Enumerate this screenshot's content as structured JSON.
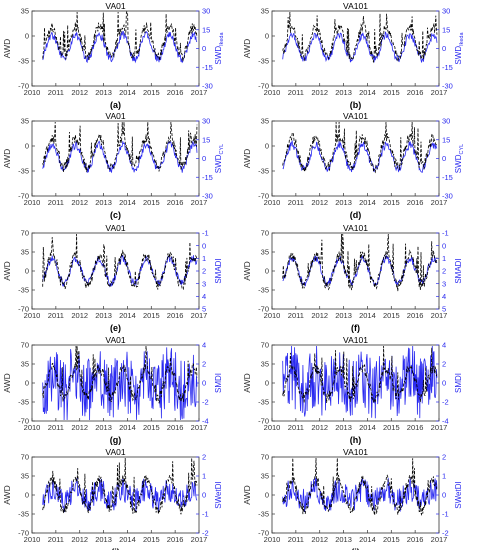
{
  "figure": {
    "x_ticks": [
      "2010",
      "2011",
      "2012",
      "2013",
      "2014",
      "2015",
      "2016",
      "2017"
    ],
    "left_axis_label": "AWD",
    "left_ticks": [
      70,
      35,
      0,
      -35,
      -70
    ],
    "colors": {
      "awd": "#000000",
      "index": "#2a2af0",
      "axis": "#333333"
    }
  },
  "chart_data": [
    {
      "type": "line",
      "title": "VA01",
      "panel_label": "(a)",
      "ylabel": "AWD",
      "ylim": [
        -70,
        35
      ],
      "right_label": "SWD",
      "right_sub": "Ikeda",
      "right_ticks": [
        "30",
        "15",
        "0",
        "-15",
        "-30"
      ],
      "right_lim": [
        30,
        -30
      ],
      "right_inverted": false
    },
    {
      "type": "line",
      "title": "VA101",
      "panel_label": "(b)",
      "ylabel": "AWD",
      "ylim": [
        -70,
        35
      ],
      "right_label": "SWD",
      "right_sub": "Ikeda",
      "right_ticks": [
        "30",
        "15",
        "0",
        "-15",
        "-30"
      ],
      "right_lim": [
        30,
        -30
      ],
      "right_inverted": false
    },
    {
      "type": "line",
      "title": "VA01",
      "panel_label": "(c)",
      "ylabel": "AWD",
      "ylim": [
        -70,
        35
      ],
      "right_label": "SWD",
      "right_sub": "CYL",
      "right_ticks": [
        "30",
        "15",
        "0",
        "-15",
        "-30"
      ],
      "right_lim": [
        30,
        -30
      ],
      "right_inverted": false
    },
    {
      "type": "line",
      "title": "VA101",
      "panel_label": "(d)",
      "ylabel": "AWD",
      "ylim": [
        -70,
        35
      ],
      "right_label": "SWD",
      "right_sub": "CYL",
      "right_ticks": [
        "30",
        "15",
        "0",
        "-15",
        "-30"
      ],
      "right_lim": [
        30,
        -30
      ],
      "right_inverted": false
    },
    {
      "type": "line",
      "title": "VA01",
      "panel_label": "(e)",
      "ylabel": "AWD",
      "ylim": [
        -70,
        70
      ],
      "right_label": "SMADI",
      "right_sub": "",
      "right_ticks": [
        "-1",
        "0",
        "1",
        "2",
        "3",
        "4",
        "5"
      ],
      "right_lim": [
        -1,
        5
      ],
      "right_inverted": true
    },
    {
      "type": "line",
      "title": "VA101",
      "panel_label": "(f)",
      "ylabel": "AWD",
      "ylim": [
        -70,
        70
      ],
      "right_label": "SMADI",
      "right_sub": "",
      "right_ticks": [
        "-1",
        "0",
        "1",
        "2",
        "3",
        "4",
        "5"
      ],
      "right_lim": [
        -1,
        5
      ],
      "right_inverted": true
    },
    {
      "type": "line",
      "title": "VA01",
      "panel_label": "(g)",
      "ylabel": "AWD",
      "ylim": [
        -70,
        70
      ],
      "right_label": "SMDI",
      "right_sub": "",
      "right_ticks": [
        "4",
        "2",
        "0",
        "-2",
        "-4"
      ],
      "right_lim": [
        4,
        -4
      ],
      "right_inverted": false
    },
    {
      "type": "line",
      "title": "VA101",
      "panel_label": "(h)",
      "ylabel": "AWD",
      "ylim": [
        -70,
        70
      ],
      "right_label": "SMDI",
      "right_sub": "",
      "right_ticks": [
        "4",
        "2",
        "0",
        "-2",
        "-4"
      ],
      "right_lim": [
        4,
        -4
      ],
      "right_inverted": false
    },
    {
      "type": "line",
      "title": "VA01",
      "panel_label": "(i)",
      "ylabel": "AWD",
      "ylim": [
        -70,
        70
      ],
      "right_label": "SWetDI",
      "right_sub": "",
      "right_ticks": [
        "2",
        "1",
        "0",
        "-1",
        "-2"
      ],
      "right_lim": [
        2,
        -2
      ],
      "right_inverted": false
    },
    {
      "type": "line",
      "title": "VA101",
      "panel_label": "(j)",
      "ylabel": "AWD",
      "ylim": [
        -70,
        70
      ],
      "right_label": "SWetDI",
      "right_sub": "",
      "right_ticks": [
        "2",
        "1",
        "0",
        "-1",
        "-2"
      ],
      "right_lim": [
        2,
        -2
      ],
      "right_inverted": false
    }
  ]
}
